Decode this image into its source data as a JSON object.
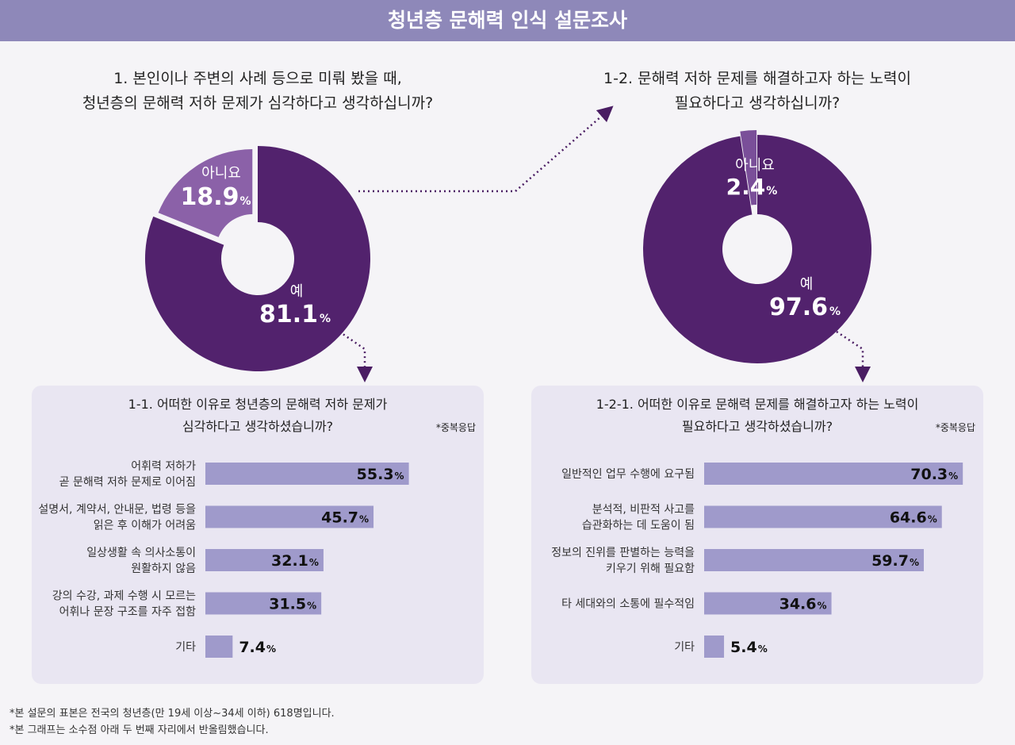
{
  "title": "청년층 문해력 인식 설문조사",
  "colors": {
    "header_bg": "#8e88b9",
    "yes": "#52226d",
    "no_left": "#8b61a8",
    "no_right": "#7a4f99",
    "bar": "#9f9acb",
    "panel": "#e9e6f2",
    "arrow": "#4a1d63"
  },
  "q1": {
    "lines": [
      "1. 본인이나 주변의 사례 등으로 미뤄 봤을 때,",
      "청년층의 문해력 저하 문제가 심각하다고 생각하십니까?"
    ]
  },
  "q12": {
    "lines": [
      "1-2. 문해력 저하 문제를 해결하고자 하는 노력이",
      "필요하다고 생각하십니까?"
    ]
  },
  "chart_data": [
    {
      "type": "pie",
      "donut": true,
      "question": "1. 본인이나 주변의 사례 등으로 미뤄 봤을 때, 청년층의 문해력 저하 문제가 심각하다고 생각하십니까?",
      "slices": [
        {
          "label": "예",
          "value": 81.1,
          "display": "81.1",
          "unit": "%"
        },
        {
          "label": "아니요",
          "value": 18.9,
          "display": "18.9",
          "unit": "%"
        }
      ]
    },
    {
      "type": "pie",
      "donut": true,
      "question": "1-2. 문해력 저하 문제를 해결하고자 하는 노력이 필요하다고 생각하십니까?",
      "slices": [
        {
          "label": "예",
          "value": 97.6,
          "display": "97.6",
          "unit": "%"
        },
        {
          "label": "아니요",
          "value": 2.4,
          "display": "2.4",
          "unit": "%"
        }
      ]
    },
    {
      "type": "bar",
      "orientation": "horizontal",
      "question_lines": [
        "1-1. 어떠한 이유로 청년층의 문해력 저하 문제가",
        "심각하다고 생각하셨습니까?"
      ],
      "note": "*중복응답",
      "categories": [
        [
          "어휘력 저하가",
          "곧 문해력 저하 문제로 이어짐"
        ],
        [
          "설명서, 계약서, 안내문, 법령 등을",
          "읽은 후 이해가 어려움"
        ],
        [
          "일상생활 속 의사소통이",
          "원활하지 않음"
        ],
        [
          "강의 수강, 과제 수행 시 모르는",
          "어휘나 문장 구조를 자주 접함"
        ],
        [
          "기타"
        ]
      ],
      "values": [
        55.3,
        45.7,
        32.1,
        31.5,
        7.4
      ],
      "unit": "%",
      "xlim": [
        0,
        100
      ]
    },
    {
      "type": "bar",
      "orientation": "horizontal",
      "question_lines": [
        "1-2-1. 어떠한 이유로 문해력 문제를 해결하고자 하는 노력이",
        "필요하다고 생각하셨습니까?"
      ],
      "note": "*중복응답",
      "categories": [
        [
          "일반적인 업무 수행에 요구됨"
        ],
        [
          "분석적, 비판적 사고를",
          "습관화하는 데 도움이 됨"
        ],
        [
          "정보의 진위를 판별하는 능력을",
          "키우기 위해 필요함"
        ],
        [
          "타 세대와의 소통에 필수적임"
        ],
        [
          "기타"
        ]
      ],
      "values": [
        70.3,
        64.6,
        59.7,
        34.6,
        5.4
      ],
      "unit": "%",
      "xlim": [
        0,
        100
      ]
    }
  ],
  "footnotes": [
    "*본 설문의 표본은 전국의 청년층(만 19세 이상~34세 이하) 618명입니다.",
    "*본 그래프는 소수점 아래 두 번째 자리에서 반올림했습니다."
  ]
}
